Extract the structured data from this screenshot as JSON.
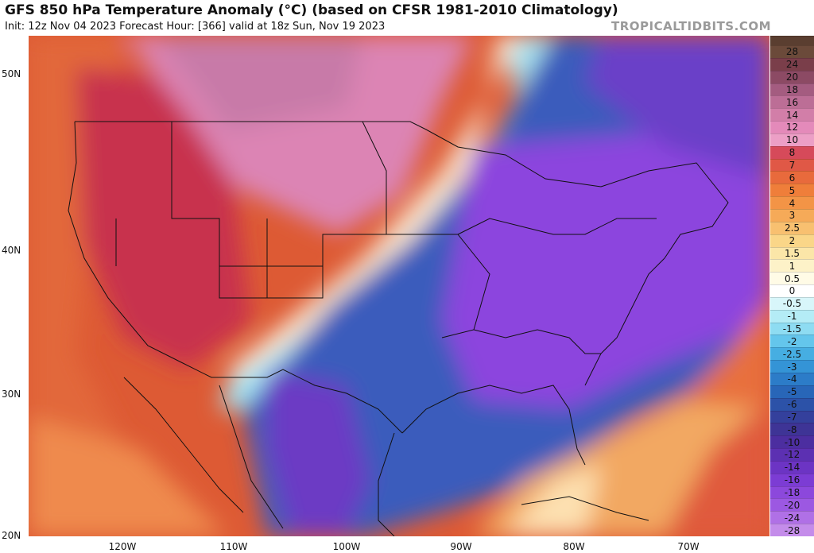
{
  "header": {
    "title": "GFS 850 hPa Temperature Anomaly (°C) (based on CFSR 1981-2010 Climatology)",
    "subtitle": "Init: 12z Nov 04 2023   Forecast Hour: [366]   valid at 18z Sun, Nov 19 2023",
    "watermark": "TROPICALTIDBITS.COM"
  },
  "axes": {
    "lat_labels": [
      "50N",
      "40N",
      "30N",
      "20N"
    ],
    "lon_labels": [
      "120W",
      "110W",
      "100W",
      "90W",
      "80W",
      "70W"
    ]
  },
  "colorbar": {
    "labels": [
      "28",
      "24",
      "20",
      "18",
      "16",
      "14",
      "12",
      "10",
      "8",
      "7",
      "6",
      "5",
      "4",
      "3",
      "2.5",
      "2",
      "1.5",
      "1",
      "0.5",
      "0",
      "-0.5",
      "-1",
      "-1.5",
      "-2",
      "-2.5",
      "-3",
      "-4",
      "-5",
      "-6",
      "-7",
      "-8",
      "-10",
      "-12",
      "-14",
      "-16",
      "-18",
      "-20",
      "-24",
      "-28"
    ],
    "colors": [
      "#6b4a3a",
      "#7a3e4a",
      "#8c4a64",
      "#a45c80",
      "#bc6e96",
      "#d27ea8",
      "#e48aba",
      "#ec9fc6",
      "#d64a5a",
      "#e05846",
      "#e86a3c",
      "#ef7e3a",
      "#f39446",
      "#f6aa58",
      "#f8c070",
      "#fad688",
      "#fbe6a8",
      "#fdf2c8",
      "#fffbe6",
      "#ffffff",
      "#d8f6fa",
      "#b4ecf6",
      "#8edcf2",
      "#64c6ec",
      "#46aee2",
      "#3494d6",
      "#2c7cc8",
      "#2866b8",
      "#2c52a8",
      "#34409c",
      "#3e3496",
      "#4c2ea0",
      "#5c30b2",
      "#6c34c4",
      "#7c3cd4",
      "#8c48dc",
      "#9c58e2",
      "#b070e6",
      "#c48cea"
    ]
  },
  "map": {
    "ocean_west_color": "#d8502a",
    "ocean_east_color": "#d84a2e",
    "gulf_color": "#2c6cc0",
    "east_us_color": "#8a44e0",
    "plains_color": "#2f54b4",
    "rockies_color": "#c0305c",
    "northern_plains_color": "#e48aba",
    "cold_front_color": "#8edcf2",
    "border_color": "#111111"
  }
}
